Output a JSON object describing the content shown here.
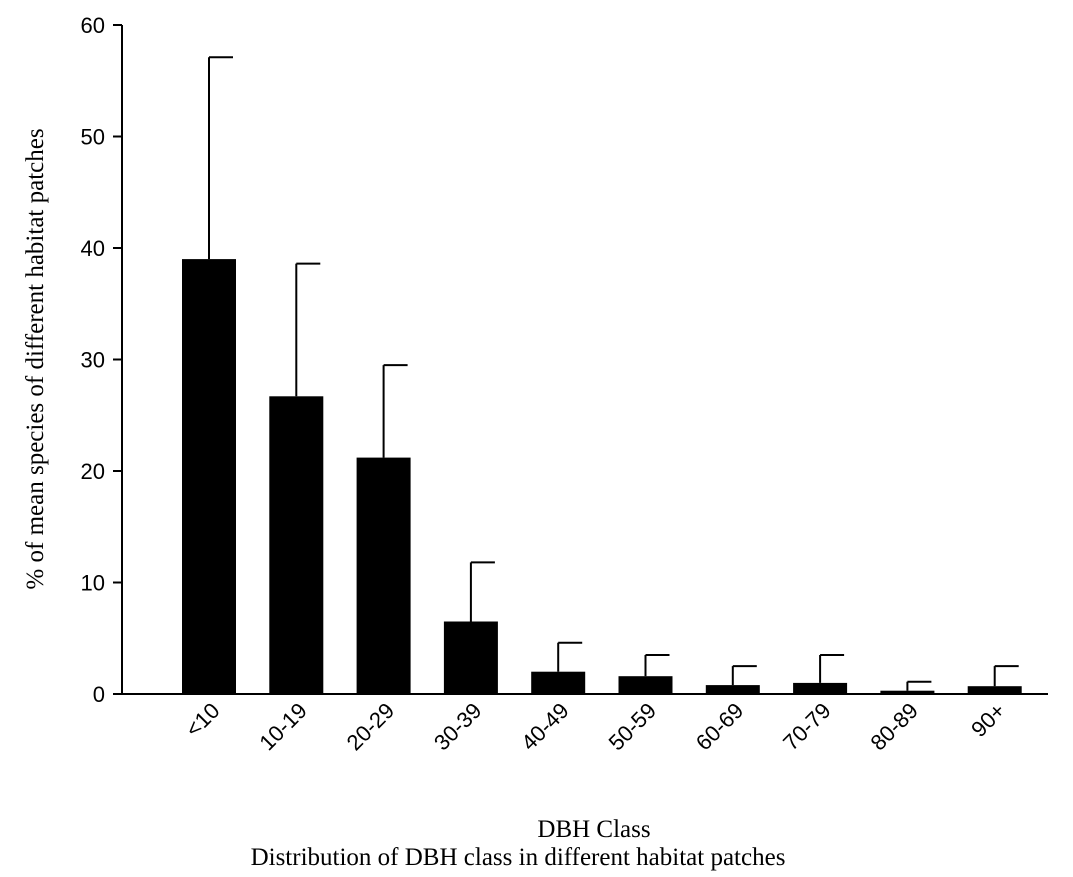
{
  "chart_data": {
    "type": "bar",
    "categories": [
      "<10",
      "10-19",
      "20-29",
      "30-39",
      "40-49",
      "50-59",
      "60-69",
      "70-79",
      "80-89",
      "90+"
    ],
    "values": [
      39,
      26.7,
      21.2,
      6.5,
      2.0,
      1.6,
      0.8,
      1.0,
      0.3,
      0.7
    ],
    "error_upper": [
      57.1,
      38.6,
      29.5,
      11.8,
      4.6,
      3.5,
      2.5,
      3.5,
      1.1,
      2.5
    ],
    "title": "",
    "xlabel": "DBH Class",
    "ylabel": "% of mean species of different habitat patches",
    "ylim": [
      0,
      60
    ],
    "yticks": [
      "0",
      "10",
      "20",
      "30",
      "40",
      "50",
      "60"
    ],
    "grid": false,
    "legend": "none",
    "bar_color": "#000000"
  },
  "caption": "Distribution of DBH class in different habitat patches"
}
